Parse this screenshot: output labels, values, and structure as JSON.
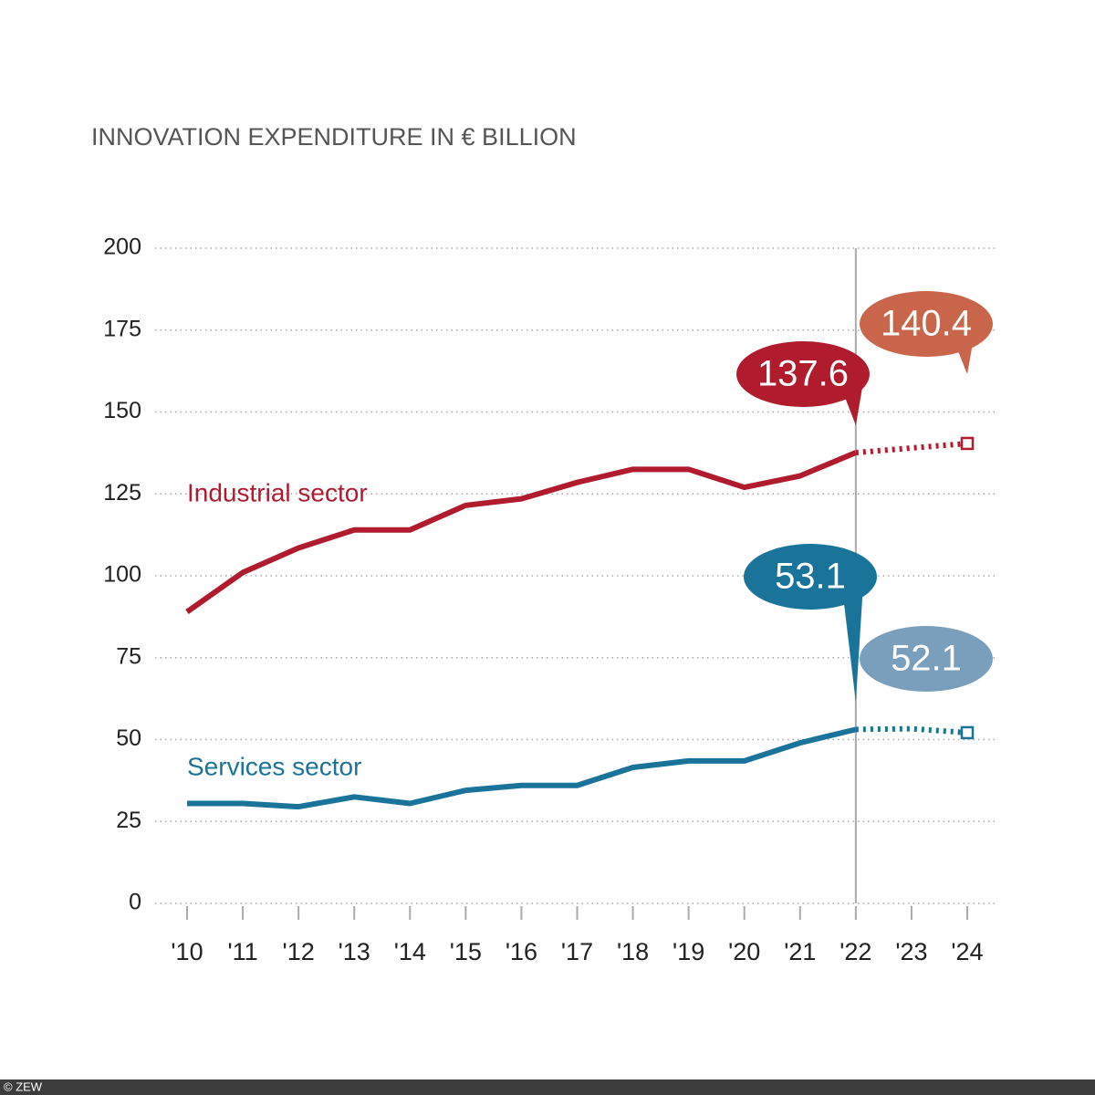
{
  "chart_data": {
    "type": "line",
    "title": "INNOVATION EXPENDITURE IN € BILLION",
    "categories": [
      "'10",
      "'11",
      "'12",
      "'13",
      "'14",
      "'15",
      "'16",
      "'17",
      "'18",
      "'19",
      "'20",
      "'21",
      "'22",
      "'23",
      "'24"
    ],
    "series": [
      {
        "name": "Industrial sector",
        "color": "#b01c2e",
        "forecast_color": "#c8654a",
        "values": [
          89,
          101,
          108.5,
          114,
          114,
          121.5,
          123.5,
          128.5,
          132.5,
          132.5,
          127,
          130.5,
          137.6,
          139,
          140.4
        ]
      },
      {
        "name": "Services sector",
        "color": "#1a7499",
        "forecast_color": "#7a9fbc",
        "values": [
          30.5,
          30.5,
          29.5,
          32.5,
          30.5,
          34.5,
          36,
          36,
          41.5,
          43.5,
          43.5,
          49,
          53.1,
          53.3,
          52.1
        ]
      }
    ],
    "forecast_from_index": 12,
    "ylim": [
      0,
      200
    ],
    "yticks": [
      0,
      25,
      50,
      75,
      100,
      125,
      150,
      175,
      200
    ],
    "grid": true,
    "footer": "© ZEW"
  }
}
